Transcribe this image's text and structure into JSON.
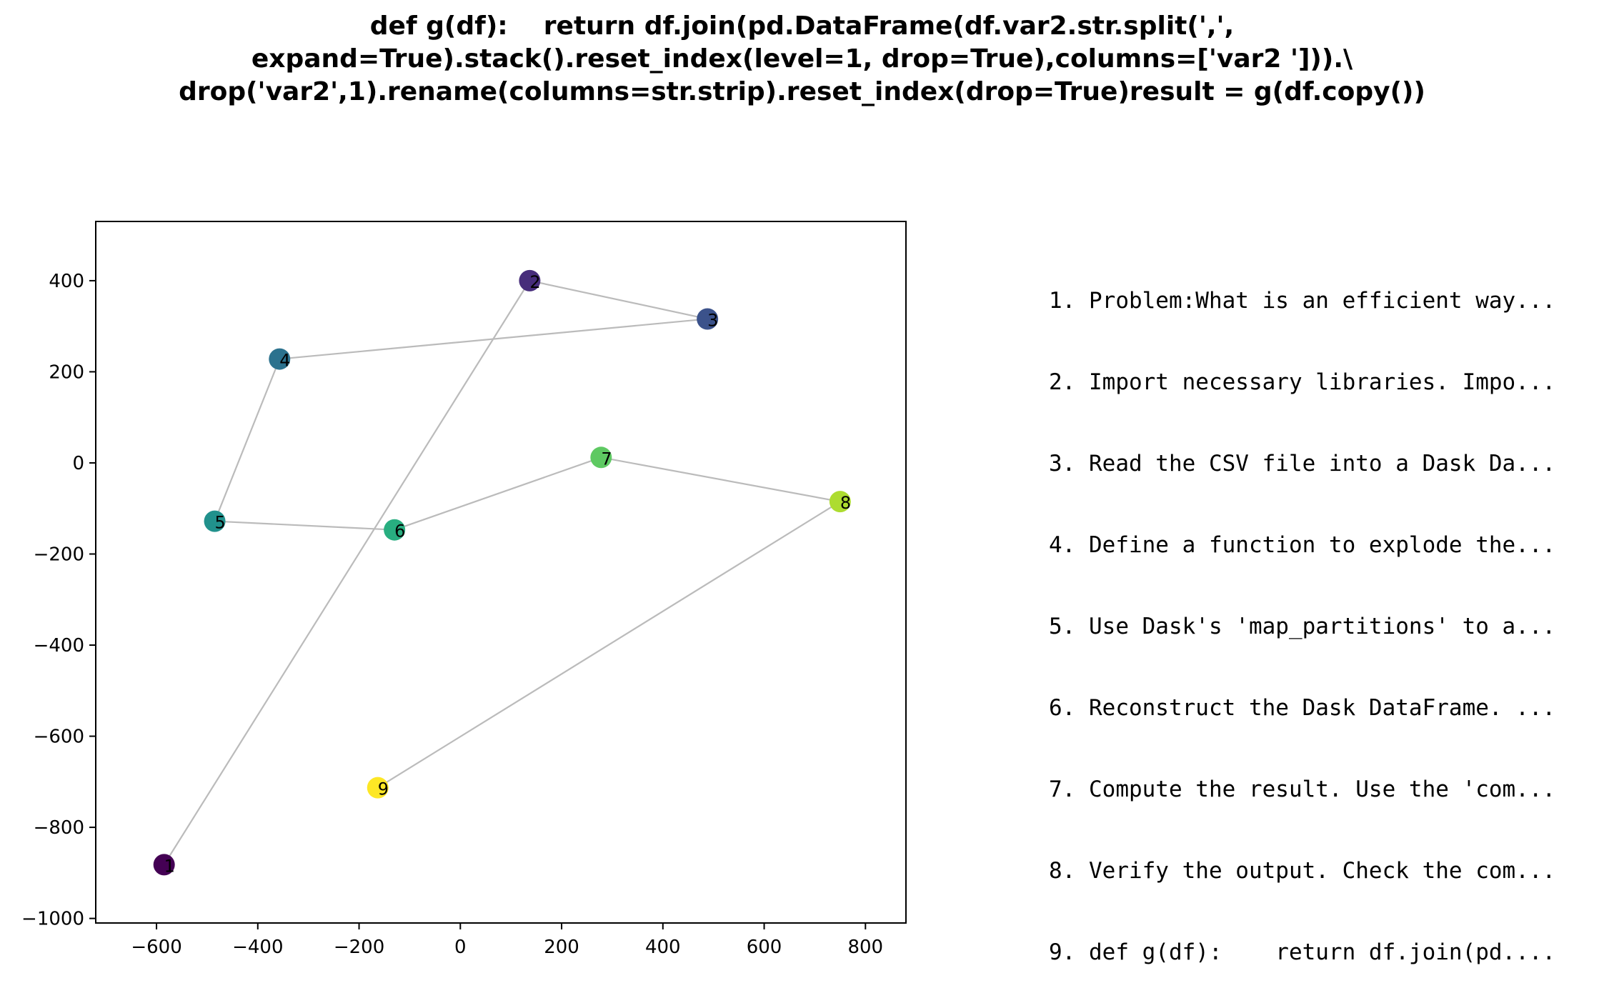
{
  "title_lines": [
    "def g(df):    return df.join(pd.DataFrame(df.var2.str.split(',',",
    "expand=True).stack().reset_index(level=1, drop=True),columns=['var2 '])).\\",
    "drop('var2',1).rename(columns=str.strip).reset_index(drop=True)result = g(df.copy())"
  ],
  "steps": [
    "1. Problem:What is an efficient way...",
    "2. Import necessary libraries. Impo...",
    "3. Read the CSV file into a Dask Da...",
    "4. Define a function to explode the...",
    "5. Use Dask's 'map_partitions' to a...",
    "6. Reconstruct the Dask DataFrame. ...",
    "7. Compute the result. Use the 'com...",
    "8. Verify the output. Check the com...",
    "9. def g(df):    return df.join(pd...."
  ],
  "chart_data": {
    "type": "scatter",
    "title": "def g(df):    return df.join(pd.DataFrame(df.var2.str.split(',', expand=True).stack().reset_index(level=1, drop=True),columns=['var2 '])).\\ drop('var2',1).rename(columns=str.strip).reset_index(drop=True)result = g(df.copy())",
    "xlabel": "",
    "ylabel": "",
    "xlim": [
      -720,
      880
    ],
    "ylim": [
      -1010,
      530
    ],
    "xticks": [
      -600,
      -400,
      -200,
      0,
      200,
      400,
      600,
      800
    ],
    "yticks": [
      -1000,
      -800,
      -600,
      -400,
      -200,
      0,
      200,
      400
    ],
    "grid": false,
    "connect_points": true,
    "line_color": "#bbbbbb",
    "points": [
      {
        "label": "1",
        "x": -585,
        "y": -882,
        "color": "#440154"
      },
      {
        "label": "2",
        "x": 137,
        "y": 400,
        "color": "#472d7b"
      },
      {
        "label": "3",
        "x": 488,
        "y": 316,
        "color": "#3b528b"
      },
      {
        "label": "4",
        "x": -357,
        "y": 228,
        "color": "#2c728e"
      },
      {
        "label": "5",
        "x": -485,
        "y": -128,
        "color": "#21918c"
      },
      {
        "label": "6",
        "x": -130,
        "y": -147,
        "color": "#28ae80"
      },
      {
        "label": "7",
        "x": 278,
        "y": 12,
        "color": "#5ec962"
      },
      {
        "label": "8",
        "x": 750,
        "y": -85,
        "color": "#addc30"
      },
      {
        "label": "9",
        "x": -163,
        "y": -713,
        "color": "#fde725"
      }
    ]
  }
}
